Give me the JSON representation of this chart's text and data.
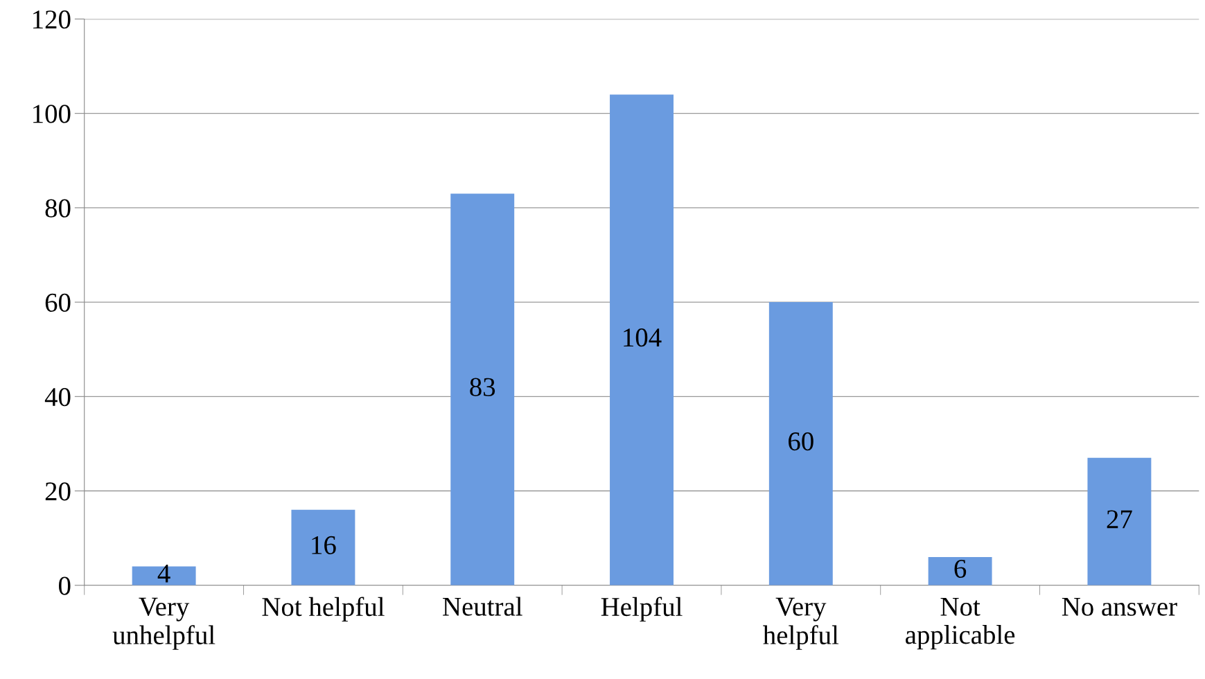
{
  "chart_data": {
    "type": "bar",
    "categories": [
      "Very\nunhelpful",
      "Not helpful",
      "Neutral",
      "Helpful",
      "Very\nhelpful",
      "Not\napplicable",
      "No answer"
    ],
    "values": [
      4,
      16,
      83,
      104,
      60,
      6,
      27
    ],
    "color": "#6a9be0",
    "ylim": [
      0,
      120
    ],
    "yticks": [
      0,
      20,
      40,
      60,
      80,
      100,
      120
    ],
    "grid": "y",
    "data_labels": true
  }
}
